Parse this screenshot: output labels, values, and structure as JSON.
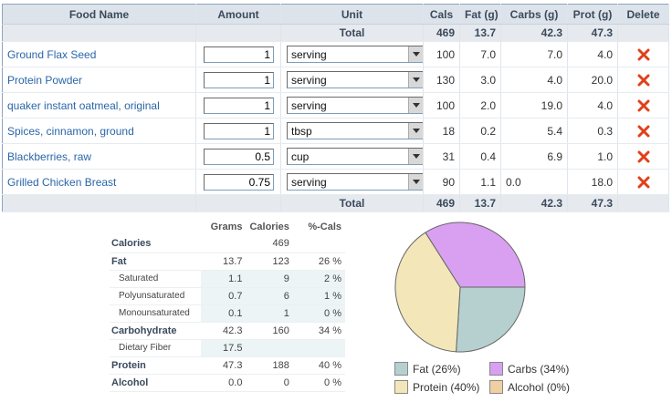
{
  "food_table": {
    "headers": [
      "Food Name",
      "Amount",
      "Unit",
      "Cals",
      "Fat (g)",
      "Carbs (g)",
      "Prot (g)",
      "Delete"
    ],
    "total_label": "Total",
    "totals": {
      "cals": "469",
      "fat": "13.7",
      "carbs": "42.3",
      "prot": "47.3"
    },
    "rows": [
      {
        "name": "Ground Flax Seed",
        "amount": "1",
        "unit": "serving",
        "cals": "100",
        "fat": "7.0",
        "carbs": "7.0",
        "prot": "4.0"
      },
      {
        "name": "Protein Powder",
        "amount": "1",
        "unit": "serving",
        "cals": "130",
        "fat": "3.0",
        "carbs": "4.0",
        "prot": "20.0"
      },
      {
        "name": "quaker instant oatmeal, original",
        "amount": "1",
        "unit": "serving",
        "cals": "100",
        "fat": "2.0",
        "carbs": "19.0",
        "prot": "4.0"
      },
      {
        "name": "Spices, cinnamon, ground",
        "amount": "1",
        "unit": "tbsp",
        "cals": "18",
        "fat": "0.2",
        "carbs": "5.4",
        "prot": "0.3"
      },
      {
        "name": "Blackberries, raw",
        "amount": "0.5",
        "unit": "cup",
        "cals": "31",
        "fat": "0.4",
        "carbs": "6.9",
        "prot": "1.0"
      },
      {
        "name": "Grilled Chicken Breast",
        "amount": "0.75",
        "unit": "serving",
        "cals": "90",
        "fat": "1.1",
        "carbs": "0.0",
        "prot": "18.0"
      }
    ]
  },
  "nutrition": {
    "headers": [
      "Grams",
      "Calories",
      "%-Cals"
    ],
    "rows": [
      {
        "label": "Calories",
        "sub": false,
        "grams": "",
        "calories": "469",
        "pct": ""
      },
      {
        "label": "Fat",
        "sub": false,
        "grams": "13.7",
        "calories": "123",
        "pct": "26 %"
      },
      {
        "label": "Saturated",
        "sub": true,
        "grams": "1.1",
        "calories": "9",
        "pct": "2 %"
      },
      {
        "label": "Polyunsaturated",
        "sub": true,
        "grams": "0.7",
        "calories": "6",
        "pct": "1 %"
      },
      {
        "label": "Monounsaturated",
        "sub": true,
        "grams": "0.1",
        "calories": "1",
        "pct": "0 %"
      },
      {
        "label": "Carbohydrate",
        "sub": false,
        "grams": "42.3",
        "calories": "160",
        "pct": "34 %"
      },
      {
        "label": "Dietary Fiber",
        "sub": true,
        "grams": "17.5",
        "calories": "",
        "pct": ""
      },
      {
        "label": "Protein",
        "sub": false,
        "grams": "47.3",
        "calories": "188",
        "pct": "40 %"
      },
      {
        "label": "Alcohol",
        "sub": false,
        "grams": "0.0",
        "calories": "0",
        "pct": "0 %"
      }
    ]
  },
  "chart_data": {
    "type": "pie",
    "slices": [
      {
        "label": "Fat (26%)",
        "value": 26,
        "color": "#b6d0cf"
      },
      {
        "label": "Carbs (34%)",
        "value": 34,
        "color": "#d9a0f2"
      },
      {
        "label": "Protein (40%)",
        "value": 40,
        "color": "#f3e6b8"
      },
      {
        "label": "Alcohol (0%)",
        "value": 0,
        "color": "#f0cfa2"
      }
    ]
  },
  "colors": {
    "header_bg": "#dde3ea",
    "link": "#2a66a8",
    "delete": "#e0401a"
  },
  "icons": {
    "delete": "delete-x-icon",
    "dropdown": "chevron-down-icon"
  }
}
